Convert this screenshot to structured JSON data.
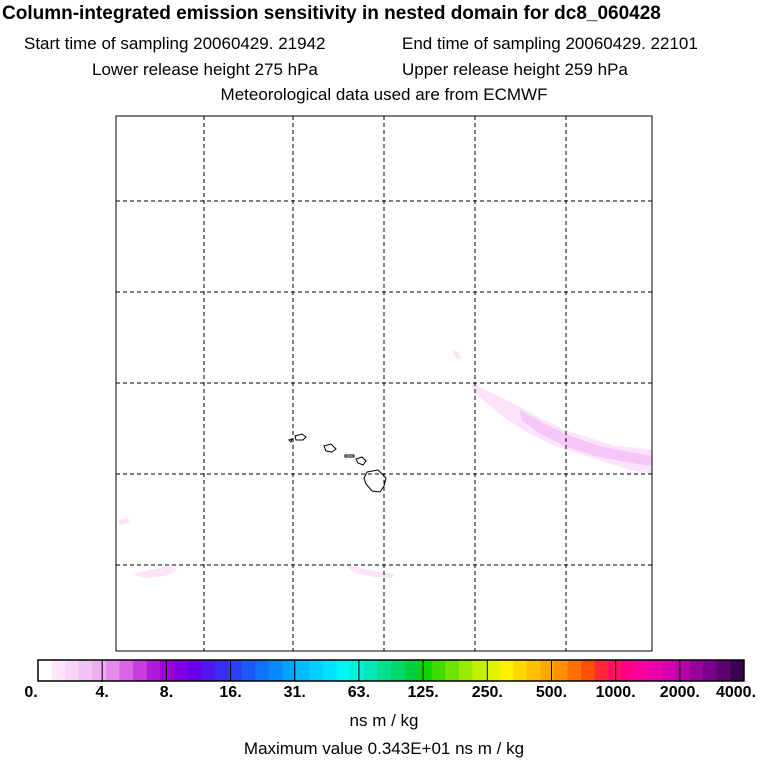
{
  "title": "Column-integrated emission sensitivity in nested domain for dc8_060428",
  "start_time": "Start time of sampling 20060429. 21942",
  "end_time": "End time of sampling 20060429. 22101",
  "lower_height": "Lower release height  275 hPa",
  "upper_height": "Upper release height  259 hPa",
  "met_data": "Meteorological data used are from ECMWF",
  "colorbar": {
    "ticks": [
      "0.",
      "4.",
      "8.",
      "16.",
      "31.",
      "63.",
      "125.",
      "250.",
      "500.",
      "1000.",
      "2000.",
      "4000."
    ],
    "colors": [
      "#ffffff",
      "#fbe6fb",
      "#f7d4f8",
      "#f3c2f5",
      "#eeaff2",
      "#e58bec",
      "#d966e6",
      "#c73fe0",
      "#b21adb",
      "#9b00d6",
      "#8000e0",
      "#6a00e8",
      "#5414f0",
      "#3b2cf5",
      "#2a3ff8",
      "#1c58fa",
      "#0f72fc",
      "#068afd",
      "#00a2fe",
      "#00bbff",
      "#00cfff",
      "#00e3ff",
      "#00f5f5",
      "#00f0d8",
      "#00e8b8",
      "#00e090",
      "#00d868",
      "#00d040",
      "#10d400",
      "#40dc00",
      "#70e400",
      "#98ec00",
      "#c0f000",
      "#e0f400",
      "#fff000",
      "#ffd800",
      "#ffc000",
      "#ffa800",
      "#ff9000",
      "#ff7000",
      "#ff5000",
      "#ff2838",
      "#ff1060",
      "#ff0088",
      "#f800a0",
      "#e800a8",
      "#d400b0",
      "#b800a8",
      "#98009c",
      "#78008c",
      "#5c0070",
      "#3c0050"
    ],
    "units": "ns m / kg"
  },
  "max_value": "Maximum value  0.343E+01 ns m / kg",
  "map": {
    "plume_color": "#f6c6f8",
    "plume_color_light": "#fbe3fb",
    "coast_color": "#000000"
  }
}
